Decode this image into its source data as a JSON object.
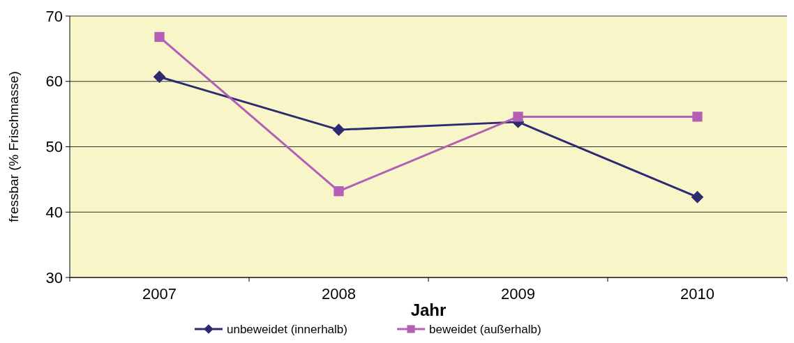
{
  "chart_data": {
    "type": "line",
    "xlabel": "Jahr",
    "ylabel": "fressbar (% Frischmasse)",
    "categories": [
      "2007",
      "2008",
      "2009",
      "2010"
    ],
    "series": [
      {
        "name": "unbeweidet (innerhalb)",
        "color": "#2e2a72",
        "values": [
          60.7,
          52.6,
          53.8,
          42.3
        ],
        "marker": "diamond"
      },
      {
        "name": "beweidet (außerhalb)",
        "color": "#b35fb5",
        "values": [
          66.8,
          43.2,
          54.6,
          54.6
        ],
        "marker": "square"
      }
    ],
    "ylim": [
      30,
      70
    ],
    "yticks": [
      30,
      40,
      50,
      60,
      70
    ],
    "grid": "y",
    "legend": "bottom"
  }
}
